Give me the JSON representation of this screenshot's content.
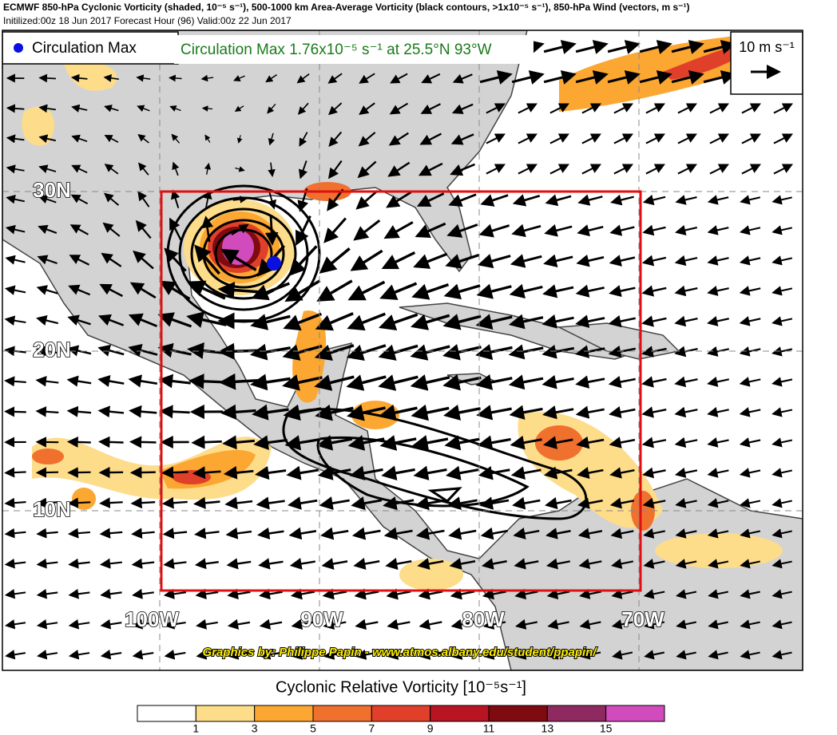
{
  "header": {
    "title": "ECMWF 850-hPa Cyclonic Vorticity (shaded, 10⁻⁵ s⁻¹), 500-1000 km Area-Average Vorticity (black contours, >1x10⁻⁵ s⁻¹), 850-hPa Wind (vectors, m s⁻¹)",
    "subtitle": "Initilized:00z 18 Jun 2017 Forecast Hour (96) Valid:00z 22 Jun 2017"
  },
  "map": {
    "legend_label": "Circulation Max",
    "annotation": "Circulation Max 1.76x10⁻⁵ s⁻¹ at 25.5°N 93°W",
    "vector_key": "10 m s⁻¹",
    "lat_labels": [
      "30N",
      "20N",
      "10N"
    ],
    "lon_labels": [
      "100W",
      "90W",
      "80W",
      "70W"
    ],
    "credit": "Graphics by: Philippe Papin - www.atmos.albany.edu/student/ppapin/"
  },
  "colorbar": {
    "title": "Cyclonic Relative Vorticity [10⁻⁵s⁻¹]",
    "colors": [
      "#ffffff",
      "#fddc8a",
      "#fba731",
      "#f0702e",
      "#e0402a",
      "#b81422",
      "#7f0a10",
      "#8e2a60",
      "#d14bbd"
    ],
    "ticks": [
      1,
      3,
      5,
      7,
      9,
      11,
      13,
      15
    ]
  }
}
